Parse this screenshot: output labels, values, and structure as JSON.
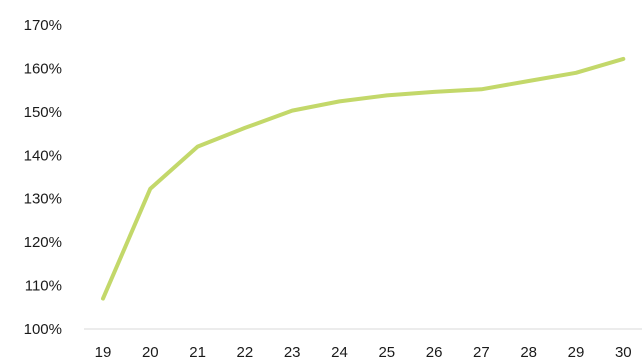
{
  "chart_data": {
    "type": "line",
    "title": "",
    "xlabel": "",
    "ylabel": "",
    "x": [
      "19",
      "20",
      "21",
      "22",
      "23",
      "24",
      "25",
      "26",
      "27",
      "28",
      "29",
      "30"
    ],
    "series": [
      {
        "values": [
          107,
          132.3,
          142,
          146.3,
          150.3,
          152.4,
          153.8,
          154.6,
          155.2,
          157.1,
          159,
          162.2
        ],
        "color": "#c3d86a"
      }
    ],
    "ylim": [
      100,
      170
    ],
    "y_ticks": [
      100,
      110,
      120,
      130,
      140,
      150,
      160,
      170
    ],
    "y_tick_labels": [
      "100%",
      "110%",
      "120%",
      "130%",
      "140%",
      "150%",
      "160%",
      "170%"
    ],
    "grid": false,
    "legend": "none",
    "axis_color": "#d9d9d9"
  }
}
